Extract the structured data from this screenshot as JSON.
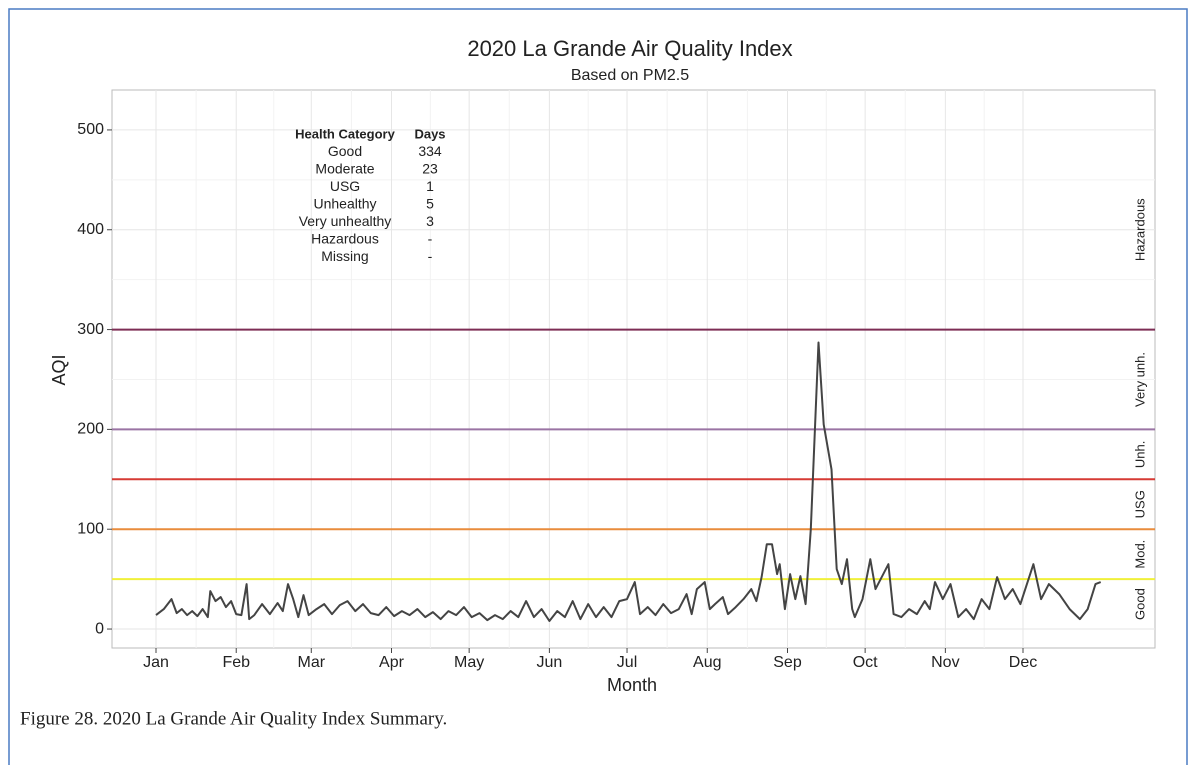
{
  "chart_data": {
    "type": "line",
    "title": "2020 La Grande Air Quality Index",
    "subtitle": "Based on PM2.5",
    "xlabel": "Month",
    "ylabel": "AQI",
    "x": [
      1,
      4,
      7,
      9,
      11,
      13,
      15,
      17,
      19,
      21,
      22,
      24,
      26,
      28,
      30,
      32,
      34,
      36,
      37,
      39,
      42,
      45,
      48,
      50,
      52,
      54,
      56,
      58,
      60,
      63,
      66,
      69,
      72,
      75,
      78,
      81,
      84,
      87,
      90,
      93,
      96,
      99,
      102,
      105,
      108,
      111,
      114,
      117,
      120,
      123,
      126,
      129,
      132,
      135,
      138,
      141,
      144,
      147,
      150,
      153,
      156,
      159,
      162,
      165,
      168,
      171,
      174,
      177,
      180,
      183,
      186,
      188,
      191,
      194,
      197,
      200,
      203,
      206,
      208,
      210,
      213,
      215,
      217,
      220,
      222,
      225,
      228,
      231,
      233,
      235,
      237,
      239,
      241,
      242,
      244,
      246,
      248,
      250,
      252,
      254,
      257,
      259,
      261,
      262,
      264,
      266,
      268,
      270,
      271,
      274,
      277,
      279,
      281,
      284,
      286,
      289,
      292,
      295,
      298,
      300,
      302,
      305,
      308,
      311,
      314,
      317,
      320,
      323,
      326,
      329,
      332,
      335,
      340,
      343,
      346,
      350,
      354,
      358,
      361,
      364,
      366
    ],
    "values": [
      14,
      20,
      30,
      16,
      20,
      14,
      18,
      13,
      20,
      12,
      38,
      28,
      32,
      22,
      28,
      15,
      14,
      45,
      10,
      14,
      25,
      15,
      26,
      18,
      45,
      30,
      12,
      34,
      14,
      20,
      25,
      15,
      24,
      28,
      18,
      25,
      16,
      14,
      22,
      13,
      18,
      14,
      20,
      12,
      17,
      10,
      18,
      14,
      22,
      12,
      16,
      9,
      14,
      10,
      18,
      12,
      28,
      12,
      20,
      8,
      18,
      12,
      28,
      10,
      25,
      12,
      22,
      12,
      28,
      30,
      47,
      15,
      22,
      14,
      25,
      16,
      20,
      35,
      15,
      40,
      47,
      20,
      25,
      32,
      15,
      22,
      30,
      40,
      28,
      52,
      85,
      85,
      55,
      65,
      20,
      55,
      30,
      53,
      25,
      100,
      287,
      205,
      175,
      160,
      60,
      45,
      70,
      20,
      12,
      30,
      70,
      40,
      50,
      65,
      15,
      12,
      20,
      15,
      28,
      20,
      47,
      30,
      45,
      12,
      20,
      10,
      30,
      20,
      52,
      30,
      40,
      25,
      65,
      30,
      45,
      35,
      20,
      10,
      20,
      45,
      47
    ],
    "color": "#444444",
    "xlim": [
      -16,
      387
    ],
    "xticks": [
      {
        "value": 1,
        "label": "Jan"
      },
      {
        "value": 32,
        "label": "Feb"
      },
      {
        "value": 61,
        "label": "Mar"
      },
      {
        "value": 92,
        "label": "Apr"
      },
      {
        "value": 122,
        "label": "May"
      },
      {
        "value": 153,
        "label": "Jun"
      },
      {
        "value": 183,
        "label": "Jul"
      },
      {
        "value": 214,
        "label": "Aug"
      },
      {
        "value": 245,
        "label": "Sep"
      },
      {
        "value": 275,
        "label": "Oct"
      },
      {
        "value": 306,
        "label": "Nov"
      },
      {
        "value": 336,
        "label": "Dec"
      }
    ],
    "ylim": [
      -19,
      540
    ],
    "yticks": [
      0,
      100,
      200,
      300,
      400,
      500
    ],
    "grid": true,
    "thresholds": [
      {
        "value": 50,
        "color": "#f0f03a"
      },
      {
        "value": 100,
        "color": "#e98c3c"
      },
      {
        "value": 150,
        "color": "#d63a34"
      },
      {
        "value": 200,
        "color": "#9a74a4"
      },
      {
        "value": 300,
        "color": "#7d2d55"
      }
    ],
    "bands": [
      {
        "label": "Good",
        "from": 0,
        "to": 50
      },
      {
        "label": "Mod.",
        "from": 50,
        "to": 100
      },
      {
        "label": "USG",
        "from": 100,
        "to": 150
      },
      {
        "label": "Unh.",
        "from": 150,
        "to": 200
      },
      {
        "label": "Very unh.",
        "from": 200,
        "to": 300
      },
      {
        "label": "Hazardous",
        "from": 300,
        "to": 500
      }
    ],
    "table": {
      "header": [
        "Health Category",
        "Days"
      ],
      "rows": [
        [
          "Good",
          "334"
        ],
        [
          "Moderate",
          "23"
        ],
        [
          "USG",
          "1"
        ],
        [
          "Unhealthy",
          "5"
        ],
        [
          "Very unhealthy",
          "3"
        ],
        [
          "Hazardous",
          "-"
        ],
        [
          "Missing",
          "-"
        ]
      ]
    }
  },
  "caption": "Figure 28. 2020 La Grande Air Quality Index Summary."
}
